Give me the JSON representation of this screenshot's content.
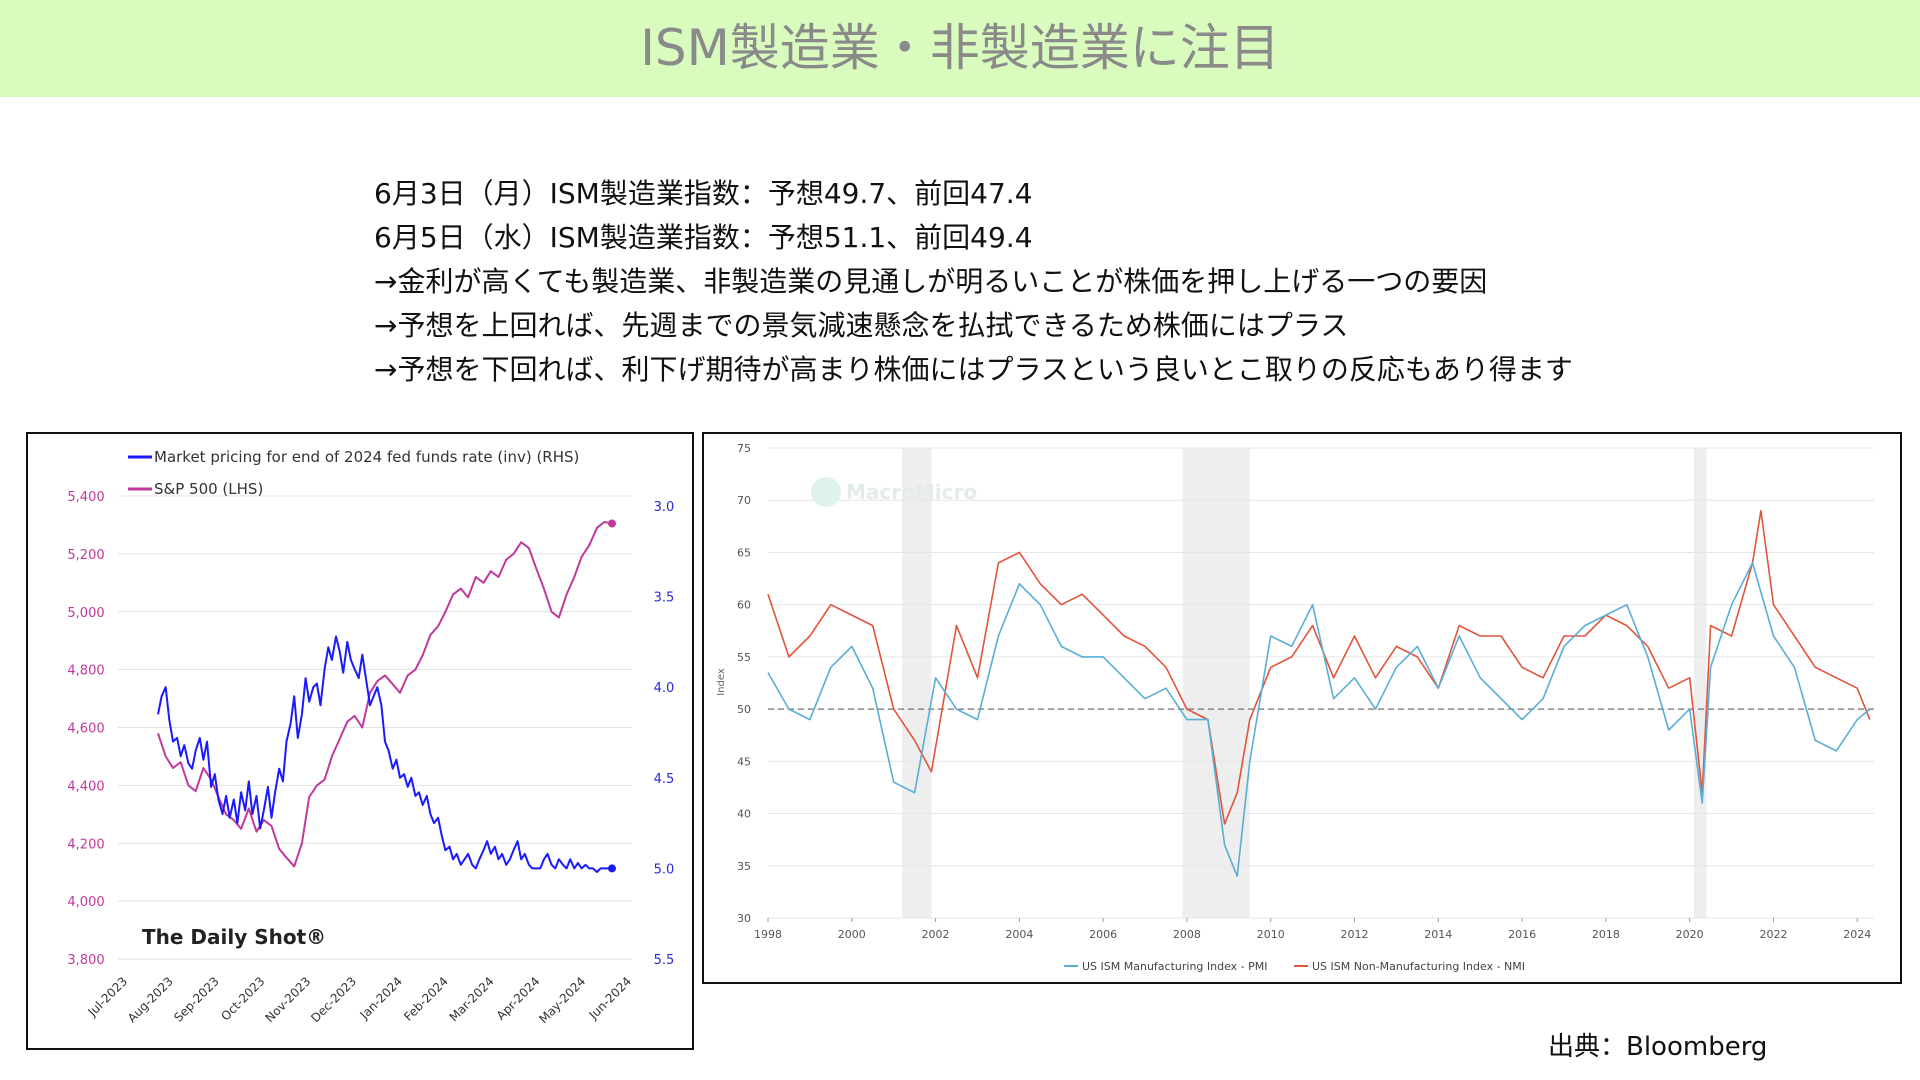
{
  "header": {
    "title": "ISM製造業・非製造業に注目"
  },
  "notes": [
    "6月3日（月）ISM製造業指数：予想49.7、前回47.4",
    "6月5日（水）ISM製造業指数：予想51.1、前回49.4",
    "→金利が高くても製造業、非製造業の見通しが明るいことが株価を押し上げる一つの要因",
    "→予想を上回れば、先週までの景気減速懸念を払拭できるため株価にはプラス",
    "→予想を下回れば、利下げ期待が高まり株価にはプラスという良いとこ取りの反応もあり得ます"
  ],
  "source": "出典：Bloomberg",
  "colors": {
    "banner": "#d9fbbe",
    "sp500": "#c0399b",
    "fedfunds": "#1a1aff",
    "pmi": "#5aaed6",
    "nmi": "#e0553b",
    "recession": "#eeeeee"
  },
  "chart_data": [
    {
      "type": "line",
      "watermark": "The Daily Shot®",
      "x_ticks": [
        "Jul-2023",
        "Aug-2023",
        "Sep-2023",
        "Oct-2023",
        "Nov-2023",
        "Dec-2023",
        "Jan-2024",
        "Feb-2024",
        "Mar-2024",
        "Apr-2024",
        "May-2024",
        "Jun-2024"
      ],
      "y_left_ticks": [
        "3,800",
        "4,000",
        "4,200",
        "4,400",
        "4,600",
        "4,800",
        "5,000",
        "5,200",
        "5,400"
      ],
      "y_left_range": [
        3800,
        5400
      ],
      "y_right_ticks": [
        "3.0",
        "3.5",
        "4.0",
        "4.5",
        "5.0",
        "5.5"
      ],
      "y_right_range": [
        3.0,
        5.5
      ],
      "y_right_inverted": true,
      "legend_position": "top-left",
      "series": [
        {
          "name": "Market pricing for end of 2024 fed funds rate (inv) (RHS)",
          "axis": "right",
          "x": [
            1.0,
            1.08,
            1.17,
            1.25,
            1.33,
            1.42,
            1.5,
            1.58,
            1.67,
            1.75,
            1.83,
            1.92,
            2.0,
            2.08,
            2.17,
            2.25,
            2.33,
            2.42,
            2.5,
            2.58,
            2.67,
            2.75,
            2.83,
            2.92,
            3.0,
            3.08,
            3.17,
            3.25,
            3.33,
            3.42,
            3.5,
            3.58,
            3.67,
            3.75,
            3.83,
            3.92,
            4.0,
            4.08,
            4.17,
            4.25,
            4.33,
            4.42,
            4.5,
            4.58,
            4.67,
            4.75,
            4.83,
            4.92,
            5.0,
            5.08,
            5.17,
            5.25,
            5.33,
            5.42,
            5.5,
            5.58,
            5.67,
            5.75,
            5.83,
            5.92,
            6.0,
            6.08,
            6.17,
            6.25,
            6.33,
            6.42,
            6.5,
            6.58,
            6.67,
            6.75,
            6.83,
            6.92,
            7.0,
            7.08,
            7.17,
            7.25,
            7.33,
            7.42,
            7.5,
            7.58,
            7.67,
            7.75,
            7.83,
            7.92,
            8.0,
            8.08,
            8.17,
            8.25,
            8.33,
            8.42,
            8.5,
            8.58,
            8.67,
            8.75,
            8.83,
            8.92,
            9.0,
            9.08,
            9.17,
            9.25,
            9.33,
            9.42,
            9.5,
            9.58,
            9.67,
            9.75,
            9.83,
            9.92,
            10.0,
            10.08,
            10.17,
            10.25,
            10.33,
            10.42,
            10.5,
            10.58,
            10.67,
            10.75,
            10.83,
            10.92,
            11.0
          ],
          "values": [
            4.15,
            4.05,
            4.0,
            4.18,
            4.3,
            4.28,
            4.38,
            4.32,
            4.42,
            4.45,
            4.35,
            4.28,
            4.4,
            4.3,
            4.55,
            4.48,
            4.62,
            4.7,
            4.6,
            4.72,
            4.62,
            4.75,
            4.58,
            4.68,
            4.52,
            4.7,
            4.6,
            4.78,
            4.68,
            4.55,
            4.72,
            4.58,
            4.45,
            4.52,
            4.3,
            4.2,
            4.05,
            4.28,
            4.15,
            3.95,
            4.08,
            4.0,
            3.98,
            4.1,
            3.9,
            3.78,
            3.85,
            3.72,
            3.8,
            3.92,
            3.75,
            3.85,
            3.9,
            3.95,
            3.82,
            3.95,
            4.1,
            4.05,
            4.0,
            4.1,
            4.3,
            4.35,
            4.45,
            4.4,
            4.5,
            4.48,
            4.55,
            4.5,
            4.6,
            4.58,
            4.65,
            4.6,
            4.7,
            4.75,
            4.72,
            4.82,
            4.9,
            4.88,
            4.95,
            4.92,
            4.98,
            4.95,
            4.92,
            4.98,
            5.0,
            4.95,
            4.9,
            4.85,
            4.92,
            4.88,
            4.95,
            4.92,
            4.98,
            4.95,
            4.9,
            4.85,
            4.95,
            4.92,
            4.98,
            5.0,
            5.0,
            5.0,
            4.95,
            4.92,
            4.98,
            5.0,
            4.95,
            4.98,
            5.0,
            4.95,
            5.0,
            4.97,
            5.0,
            4.98,
            5.0,
            5.0,
            5.02,
            5.0,
            5.0,
            5.0,
            5.0
          ]
        },
        {
          "name": "S&P 500 (LHS)",
          "axis": "left",
          "x": [
            1.0,
            1.17,
            1.33,
            1.5,
            1.67,
            1.83,
            2.0,
            2.17,
            2.33,
            2.5,
            2.67,
            2.83,
            3.0,
            3.17,
            3.33,
            3.5,
            3.67,
            3.83,
            4.0,
            4.17,
            4.33,
            4.5,
            4.67,
            4.83,
            5.0,
            5.17,
            5.33,
            5.5,
            5.67,
            5.83,
            6.0,
            6.17,
            6.33,
            6.5,
            6.67,
            6.83,
            7.0,
            7.17,
            7.33,
            7.5,
            7.67,
            7.83,
            8.0,
            8.17,
            8.33,
            8.5,
            8.67,
            8.83,
            9.0,
            9.17,
            9.33,
            9.5,
            9.67,
            9.83,
            10.0,
            10.17,
            10.33,
            10.5,
            10.67,
            10.83,
            11.0
          ],
          "values": [
            4580,
            4500,
            4460,
            4480,
            4400,
            4380,
            4460,
            4420,
            4360,
            4300,
            4280,
            4250,
            4320,
            4240,
            4280,
            4260,
            4180,
            4150,
            4120,
            4200,
            4360,
            4400,
            4420,
            4500,
            4560,
            4620,
            4640,
            4600,
            4720,
            4760,
            4780,
            4750,
            4720,
            4780,
            4800,
            4850,
            4920,
            4950,
            5000,
            5060,
            5080,
            5050,
            5120,
            5100,
            5140,
            5120,
            5180,
            5200,
            5240,
            5220,
            5150,
            5080,
            5000,
            4980,
            5060,
            5120,
            5190,
            5230,
            5290,
            5310,
            5305
          ]
        }
      ]
    },
    {
      "type": "line",
      "watermark": "MacroMicro",
      "ylabel": "Index",
      "y_ticks": [
        "30",
        "35",
        "40",
        "45",
        "50",
        "55",
        "60",
        "65",
        "70",
        "75"
      ],
      "ylim": [
        30,
        75
      ],
      "x_ticks": [
        "1998",
        "2000",
        "2002",
        "2004",
        "2006",
        "2008",
        "2010",
        "2012",
        "2014",
        "2016",
        "2018",
        "2020",
        "2022",
        "2024"
      ],
      "xlim": [
        1998,
        2024.4
      ],
      "reference_line": 50,
      "recessions": [
        [
          2001.2,
          2001.9
        ],
        [
          2007.9,
          2009.5
        ],
        [
          2020.1,
          2020.4
        ]
      ],
      "legend_position": "bottom",
      "series": [
        {
          "name": "US ISM Manufacturing Index - PMI",
          "x": [
            1998.0,
            1998.5,
            1999.0,
            1999.5,
            2000.0,
            2000.5,
            2001.0,
            2001.5,
            2002.0,
            2002.5,
            2003.0,
            2003.5,
            2004.0,
            2004.5,
            2005.0,
            2005.5,
            2006.0,
            2006.5,
            2007.0,
            2007.5,
            2008.0,
            2008.5,
            2008.9,
            2009.2,
            2009.5,
            2010.0,
            2010.5,
            2011.0,
            2011.5,
            2012.0,
            2012.5,
            2013.0,
            2013.5,
            2014.0,
            2014.5,
            2015.0,
            2015.5,
            2016.0,
            2016.5,
            2017.0,
            2017.5,
            2018.0,
            2018.5,
            2019.0,
            2019.5,
            2020.0,
            2020.3,
            2020.5,
            2021.0,
            2021.5,
            2022.0,
            2022.5,
            2023.0,
            2023.5,
            2024.0,
            2024.3
          ],
          "values": [
            53.5,
            50,
            49,
            54,
            56,
            52,
            43,
            42,
            53,
            50,
            49,
            57,
            62,
            60,
            56,
            55,
            55,
            53,
            51,
            52,
            49,
            49,
            37,
            34,
            45,
            57,
            56,
            60,
            51,
            53,
            50,
            54,
            56,
            52,
            57,
            53,
            51,
            49,
            51,
            56,
            58,
            59,
            60,
            55,
            48,
            50,
            41,
            54,
            60,
            64,
            57,
            54,
            47,
            46,
            49,
            50
          ]
        },
        {
          "name": "US ISM Non-Manufacturing Index - NMI",
          "x": [
            1998.0,
            1998.5,
            1999.0,
            1999.5,
            2000.0,
            2000.5,
            2001.0,
            2001.5,
            2001.9,
            2002.5,
            2003.0,
            2003.5,
            2004.0,
            2004.5,
            2005.0,
            2005.5,
            2006.0,
            2006.5,
            2007.0,
            2007.5,
            2008.0,
            2008.5,
            2008.9,
            2009.2,
            2009.5,
            2010.0,
            2010.5,
            2011.0,
            2011.5,
            2012.0,
            2012.5,
            2013.0,
            2013.5,
            2014.0,
            2014.5,
            2015.0,
            2015.5,
            2016.0,
            2016.5,
            2017.0,
            2017.5,
            2018.0,
            2018.5,
            2019.0,
            2019.5,
            2020.0,
            2020.3,
            2020.5,
            2021.0,
            2021.5,
            2021.7,
            2022.0,
            2022.5,
            2023.0,
            2023.5,
            2024.0,
            2024.3
          ],
          "values": [
            61,
            55,
            57,
            60,
            59,
            58,
            50,
            47,
            44,
            58,
            53,
            64,
            65,
            62,
            60,
            61,
            59,
            57,
            56,
            54,
            50,
            49,
            39,
            42,
            49,
            54,
            55,
            58,
            53,
            57,
            53,
            56,
            55,
            52,
            58,
            57,
            57,
            54,
            53,
            57,
            57,
            59,
            58,
            56,
            52,
            53,
            42,
            58,
            57,
            64,
            69,
            60,
            57,
            54,
            53,
            52,
            49
          ]
        }
      ]
    }
  ]
}
